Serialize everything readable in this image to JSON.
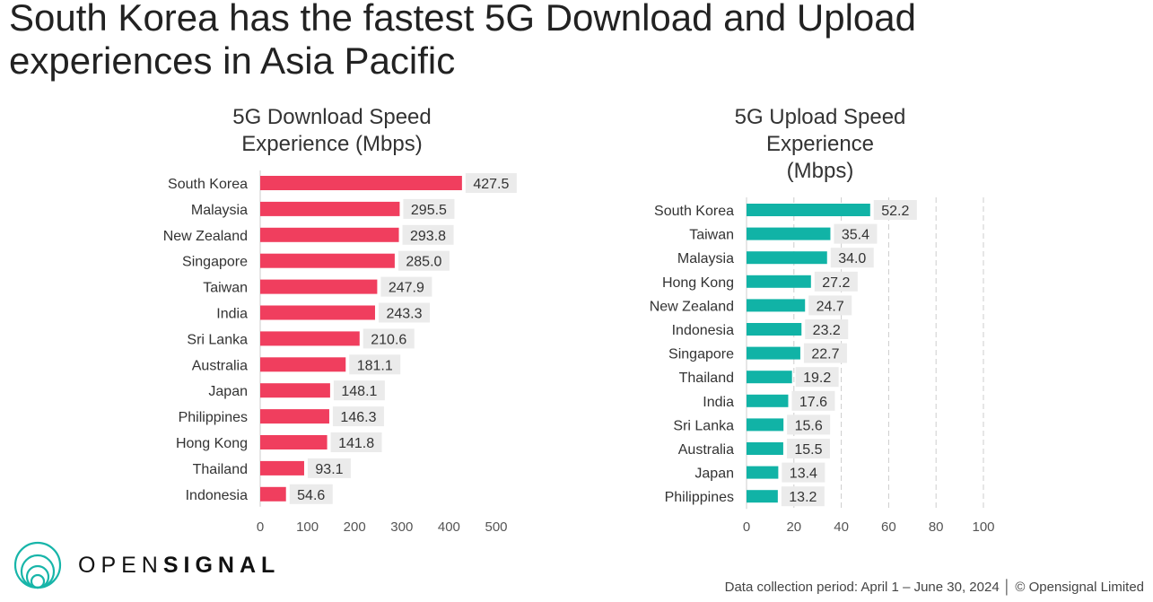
{
  "title": "South Korea has the fastest 5G Download and Upload experiences in Asia Pacific",
  "brand": {
    "light": "OPEN",
    "bold": "SIGNAL"
  },
  "footer": "Data collection period: April 1 – June 30, 2024 │ © Opensignal Limited",
  "colors": {
    "download": "#f03e5e",
    "upload": "#11b3a6",
    "label_bg": "#ebebeb"
  },
  "chart_data": [
    {
      "type": "bar",
      "orientation": "horizontal",
      "title": "5G Download Speed Experience (Mbps)",
      "title_lines": [
        "5G Download Speed",
        "Experience (Mbps)"
      ],
      "categories": [
        "South Korea",
        "Malaysia",
        "New Zealand",
        "Singapore",
        "Taiwan",
        "India",
        "Sri Lanka",
        "Australia",
        "Japan",
        "Philippines",
        "Hong Kong",
        "Thailand",
        "Indonesia"
      ],
      "values": [
        427.5,
        295.5,
        293.8,
        285.0,
        247.9,
        243.3,
        210.6,
        181.1,
        148.1,
        146.3,
        141.8,
        93.1,
        54.6
      ],
      "labels": [
        "427.5",
        "295.5",
        "293.8",
        "285.0",
        "247.9",
        "243.3",
        "210.6",
        "181.1",
        "148.1",
        "146.3",
        "141.8",
        "93.1",
        "54.6"
      ],
      "xlim": [
        0,
        500
      ],
      "ticks": [
        "0",
        "100",
        "200",
        "300",
        "400",
        "500"
      ],
      "grid": false
    },
    {
      "type": "bar",
      "orientation": "horizontal",
      "title": "5G Upload Speed Experience (Mbps)",
      "title_lines": [
        "5G Upload Speed",
        "Experience",
        "(Mbps)"
      ],
      "categories": [
        "South Korea",
        "Taiwan",
        "Malaysia",
        "Hong Kong",
        "New Zealand",
        "Indonesia",
        "Singapore",
        "Thailand",
        "India",
        "Sri Lanka",
        "Australia",
        "Japan",
        "Philippines"
      ],
      "values": [
        52.2,
        35.4,
        34.0,
        27.2,
        24.7,
        23.2,
        22.7,
        19.2,
        17.6,
        15.6,
        15.5,
        13.4,
        13.2
      ],
      "labels": [
        "52.2",
        "35.4",
        "34.0",
        "27.2",
        "24.7",
        "23.2",
        "22.7",
        "19.2",
        "17.6",
        "15.6",
        "15.5",
        "13.4",
        "13.2"
      ],
      "xlim": [
        0,
        100
      ],
      "ticks": [
        "0",
        "20",
        "40",
        "60",
        "80",
        "100"
      ],
      "grid": true
    }
  ]
}
